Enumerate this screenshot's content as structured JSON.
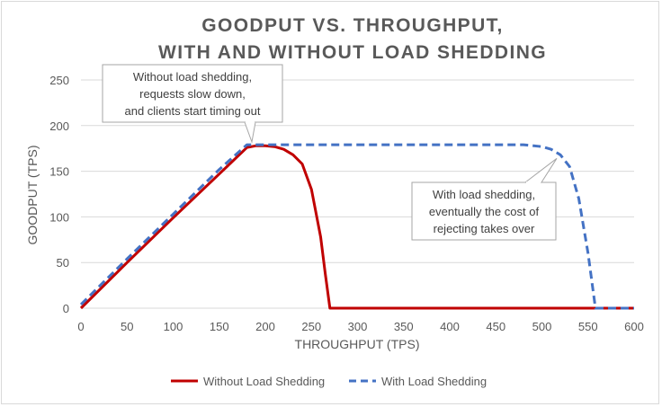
{
  "chart_data": {
    "type": "line",
    "title": [
      "GOODPUT VS. THROUGHPUT,",
      "WITH AND WITHOUT LOAD SHEDDING"
    ],
    "xlabel": "THROUGHPUT (TPS)",
    "ylabel": "GOODPUT (TPS)",
    "xlim": [
      0,
      600
    ],
    "ylim": [
      0,
      250
    ],
    "xticks": [
      0,
      50,
      100,
      150,
      200,
      250,
      300,
      350,
      400,
      450,
      500,
      550,
      600
    ],
    "yticks": [
      0,
      50,
      100,
      150,
      200,
      250
    ],
    "grid": "horizontal",
    "legend_position": "bottom",
    "series": [
      {
        "name": "Without Load Shedding",
        "color": "#c00000",
        "style": "solid",
        "points": [
          [
            0,
            0
          ],
          [
            50,
            50
          ],
          [
            100,
            99
          ],
          [
            150,
            147
          ],
          [
            180,
            176
          ],
          [
            190,
            178
          ],
          [
            200,
            178
          ],
          [
            210,
            177
          ],
          [
            220,
            174
          ],
          [
            230,
            168
          ],
          [
            240,
            158
          ],
          [
            250,
            130
          ],
          [
            260,
            78
          ],
          [
            265,
            38
          ],
          [
            270,
            0
          ],
          [
            600,
            0
          ]
        ]
      },
      {
        "name": "With Load Shedding",
        "color": "#4472c4",
        "style": "dashed",
        "points": [
          [
            0,
            4
          ],
          [
            50,
            54
          ],
          [
            100,
            103
          ],
          [
            150,
            152
          ],
          [
            180,
            179
          ],
          [
            200,
            179
          ],
          [
            300,
            179
          ],
          [
            400,
            179
          ],
          [
            480,
            179
          ],
          [
            500,
            177
          ],
          [
            510,
            174
          ],
          [
            520,
            168
          ],
          [
            530,
            155
          ],
          [
            540,
            120
          ],
          [
            550,
            60
          ],
          [
            558,
            0
          ],
          [
            600,
            0
          ]
        ]
      }
    ],
    "annotations": [
      {
        "lines": [
          "Without load shedding,",
          "requests slow down,",
          "and clients start timing out"
        ],
        "target": [
          190,
          178
        ]
      },
      {
        "lines": [
          "With load shedding,",
          "eventually the cost of",
          "rejecting takes over"
        ],
        "target": [
          520,
          168
        ]
      }
    ]
  }
}
